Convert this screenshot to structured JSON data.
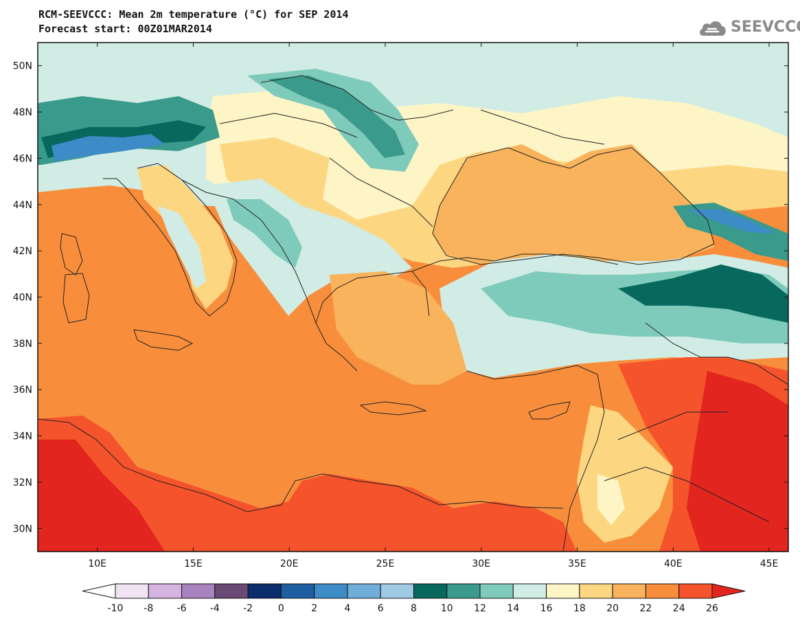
{
  "header": {
    "title_line1": "RCM-SEEVCCC: Mean 2m temperature (°C) for SEP 2014",
    "title_line2": "Forecast start: 00Z01MAR2014",
    "logo_text": "SEEVCCC",
    "logo_icon": "cloud-icon"
  },
  "map": {
    "lon_range": [
      6.9,
      46.0
    ],
    "lat_range": [
      29.0,
      51.0
    ],
    "lon_ticks": [
      "10E",
      "15E",
      "20E",
      "25E",
      "30E",
      "35E",
      "40E",
      "45E"
    ],
    "lon_tick_values": [
      10,
      15,
      20,
      25,
      30,
      35,
      40,
      45
    ],
    "lat_ticks": [
      "30N",
      "32N",
      "34N",
      "36N",
      "38N",
      "40N",
      "42N",
      "44N",
      "46N",
      "48N",
      "50N"
    ],
    "lat_tick_values": [
      30,
      32,
      34,
      36,
      38,
      40,
      42,
      44,
      46,
      48,
      50
    ],
    "colors": {
      "sea": "#f88e3c",
      "land_warm": "#f9b35d",
      "land_hot": "#f4532b",
      "land_very_hot": "#e2251f",
      "cool": "#d1ece4",
      "cold": "#7fcbbb",
      "colder": "#3a9a8c",
      "coldest": "#07685d",
      "pale": "#fdf5c6",
      "light_orange": "#fdd682",
      "border": "#222222"
    }
  },
  "colorbar": {
    "labels": [
      "-10",
      "-8",
      "-6",
      "-4",
      "-2",
      "0",
      "2",
      "4",
      "6",
      "8",
      "10",
      "12",
      "14",
      "16",
      "18",
      "20",
      "22",
      "24",
      "26"
    ],
    "colors": [
      "#ffffff",
      "#f0e4f3",
      "#d6b4e2",
      "#a983bf",
      "#6a4a75",
      "#0b2d6b",
      "#1d5fa0",
      "#3d8cc7",
      "#6eaed8",
      "#9fcae4",
      "#07685d",
      "#3a9a8c",
      "#7fcbbb",
      "#d1ece4",
      "#fdf5c6",
      "#fdd682",
      "#f9b35d",
      "#f88e3c",
      "#f4532b",
      "#e2251f"
    ]
  }
}
